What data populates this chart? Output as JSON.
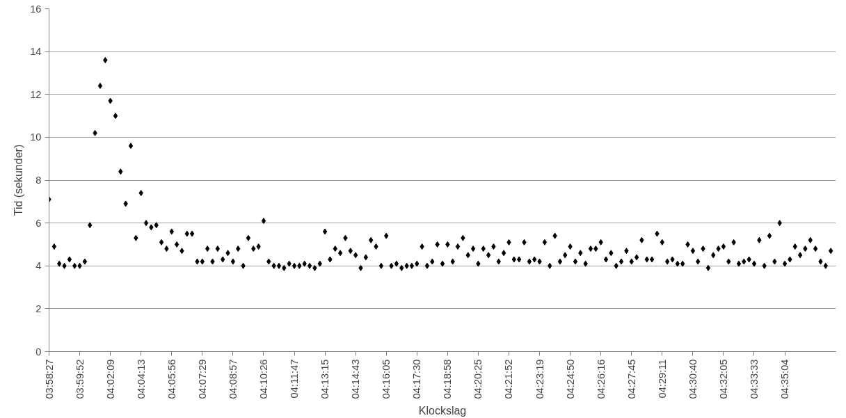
{
  "chart_data": {
    "type": "scatter",
    "xlabel": "Klockslag",
    "ylabel": "Tid (sekunder)",
    "categories": [
      "03:58:27",
      null,
      null,
      null,
      null,
      null,
      "03:59:52",
      null,
      null,
      null,
      null,
      null,
      "04:02:09",
      null,
      null,
      null,
      null,
      null,
      "04:04:13",
      null,
      null,
      null,
      null,
      null,
      "04:05:56",
      null,
      null,
      null,
      null,
      null,
      "04:07:29",
      null,
      null,
      null,
      null,
      null,
      "04:08:57",
      null,
      null,
      null,
      null,
      null,
      "04:10:26",
      null,
      null,
      null,
      null,
      null,
      "04:11:47",
      null,
      null,
      null,
      null,
      null,
      "04:13:15",
      null,
      null,
      null,
      null,
      null,
      "04:14:43",
      null,
      null,
      null,
      null,
      null,
      "04:16:05",
      null,
      null,
      null,
      null,
      null,
      "04:17:30",
      null,
      null,
      null,
      null,
      null,
      "04:18:58",
      null,
      null,
      null,
      null,
      null,
      "04:20:25",
      null,
      null,
      null,
      null,
      null,
      "04:21:52",
      null,
      null,
      null,
      null,
      null,
      "04:23:19",
      null,
      null,
      null,
      null,
      null,
      "04:24:50",
      null,
      null,
      null,
      null,
      null,
      "04:26:16",
      null,
      null,
      null,
      null,
      null,
      "04:27:45",
      null,
      null,
      null,
      null,
      null,
      "04:29:11",
      null,
      null,
      null,
      null,
      null,
      "04:30:40",
      null,
      null,
      null,
      null,
      null,
      "04:32:05",
      null,
      null,
      null,
      null,
      null,
      "04:33:33",
      null,
      null,
      null,
      null,
      null,
      "04:35:04",
      null,
      null,
      null,
      null,
      null,
      null,
      null,
      null,
      null
    ],
    "series": [
      {
        "color": "#000000",
        "values": [
          7.1,
          4.9,
          4.1,
          4.0,
          4.3,
          4.0,
          4.0,
          4.2,
          5.9,
          10.2,
          12.4,
          13.6,
          11.7,
          11.0,
          8.4,
          6.9,
          9.6,
          5.3,
          7.4,
          6.0,
          5.8,
          5.9,
          5.1,
          4.8,
          5.6,
          5.0,
          4.7,
          5.5,
          5.5,
          4.2,
          4.2,
          4.8,
          4.2,
          4.8,
          4.3,
          4.6,
          4.2,
          4.8,
          4.0,
          5.3,
          4.8,
          4.9,
          6.1,
          4.2,
          4.0,
          4.0,
          3.9,
          4.1,
          4.0,
          4.0,
          4.1,
          4.0,
          3.9,
          4.1,
          5.6,
          4.3,
          4.8,
          4.6,
          5.3,
          4.7,
          4.5,
          3.9,
          4.4,
          5.2,
          4.9,
          4.0,
          5.4,
          4.0,
          4.1,
          3.9,
          4.0,
          4.0,
          4.1,
          4.9,
          4.0,
          4.2,
          5.0,
          4.1,
          5.0,
          4.2,
          4.9,
          5.3,
          4.5,
          4.8,
          4.1,
          4.8,
          4.5,
          4.9,
          4.2,
          4.6,
          5.1,
          4.3,
          4.3,
          5.1,
          4.2,
          4.3,
          4.2,
          5.1,
          4.0,
          5.4,
          4.2,
          4.5,
          4.9,
          4.2,
          4.6,
          4.1,
          4.8,
          4.8,
          5.1,
          4.3,
          4.6,
          4.0,
          4.2,
          4.7,
          4.2,
          4.4,
          5.2,
          4.3,
          4.3,
          5.5,
          5.1,
          4.2,
          4.3,
          4.1,
          4.1,
          5.0,
          4.7,
          4.2,
          4.8,
          3.9,
          4.5,
          4.8,
          4.9,
          4.2,
          5.1,
          4.1,
          4.2,
          4.3,
          4.1,
          5.2,
          4.0,
          5.4,
          4.2,
          6.0,
          4.1,
          4.3,
          4.9,
          4.5,
          4.8,
          5.2,
          4.8,
          4.2,
          4.0,
          4.7
        ]
      }
    ],
    "ylim": [
      0,
      16
    ],
    "yticks": [
      0,
      2,
      4,
      6,
      8,
      10,
      12,
      14,
      16
    ],
    "grid": "y",
    "marker": "diamond"
  }
}
